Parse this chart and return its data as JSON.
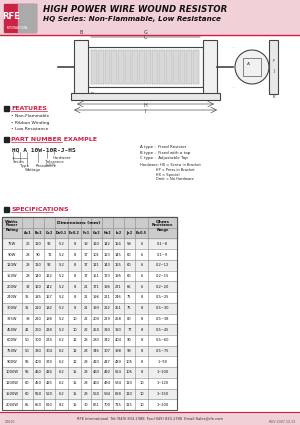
{
  "title1": "HIGH POWER WIRE WOUND RESISTOR",
  "title2": "HQ Series: Non-Flammable, Low Resistance",
  "header_bg": "#f0c0c8",
  "header_text_color": "#1a1a1a",
  "rfe_logo_color": "#cc2244",
  "features_title": "FEATURES",
  "features": [
    "Non-Flammable",
    "Ribbon Winding",
    "Low Resistance"
  ],
  "part_number_title": "PART NUMBER EXAMPLE",
  "part_number": "HQ A 10W-10R-J-HS",
  "type_info": [
    "A type :  Fixed Resistor",
    "B type :  Fixed with a tap",
    "C type :  Adjustable Tap"
  ],
  "hardware_info": [
    "Hardware: HS = Screw in Bracket",
    "              HP = Press in Bracket",
    "              HX = Special",
    "              Omit = No Hardware"
  ],
  "specs_title": "SPECIFICATIONS",
  "table_headers2": [
    "Power Rating",
    "A±1",
    "B±2",
    "C±2",
    "D±0.1",
    "E±0.2",
    "F±1",
    "G±2",
    "H±2",
    "I±2",
    "J±2",
    "K±0.5",
    "Resistance Range"
  ],
  "table_data": [
    [
      "75W",
      "26",
      "110",
      "92",
      "5.2",
      "8",
      "19",
      "120",
      "142",
      "164",
      "58",
      "6",
      "0.1~8"
    ],
    [
      "90W",
      "28",
      "90",
      "72",
      "5.2",
      "8",
      "17",
      "101",
      "123",
      "145",
      "60",
      "6",
      "0.1~9"
    ],
    [
      "120W",
      "28",
      "110",
      "92",
      "5.2",
      "8",
      "17",
      "121",
      "143",
      "165",
      "60",
      "6",
      "0.2~12"
    ],
    [
      "150W",
      "28",
      "140",
      "122",
      "5.2",
      "8",
      "17",
      "151",
      "173",
      "195",
      "60",
      "6",
      "0.2~15"
    ],
    [
      "200W",
      "32",
      "160",
      "142",
      "5.2",
      "8",
      "21",
      "171",
      "196",
      "221",
      "65",
      "6",
      "0.2~20"
    ],
    [
      "240W",
      "35",
      "185",
      "167",
      "5.2",
      "8",
      "21",
      "196",
      "221",
      "246",
      "75",
      "8",
      "0.5~25"
    ],
    [
      "300W",
      "35",
      "210",
      "182",
      "5.2",
      "8",
      "21",
      "193",
      "222",
      "251",
      "75",
      "8",
      "0.5~30"
    ],
    [
      "375W",
      "38",
      "210",
      "188",
      "5.2",
      "10",
      "22",
      "200",
      "229",
      "258",
      "80",
      "8",
      "0.5~38"
    ],
    [
      "450W",
      "41",
      "260",
      "238",
      "5.2",
      "10",
      "22",
      "250",
      "320",
      "320",
      "77",
      "8",
      "0.5~45"
    ],
    [
      "600W",
      "50",
      "300",
      "274",
      "6.2",
      "12",
      "28",
      "280",
      "342",
      "404",
      "90",
      "8",
      "0.5~60"
    ],
    [
      "750W",
      "50",
      "330",
      "304",
      "6.2",
      "12",
      "28",
      "346",
      "307",
      "398",
      "99",
      "8",
      "0.5~75"
    ],
    [
      "900W",
      "55",
      "400",
      "374",
      "6.2",
      "12",
      "28",
      "410",
      "437",
      "489",
      "105",
      "8",
      "1~90"
    ],
    [
      "1000W",
      "55",
      "460",
      "434",
      "6.2",
      "15",
      "28",
      "460",
      "492",
      "524",
      "105",
      "8",
      "1~100"
    ],
    [
      "1200W",
      "60",
      "450",
      "425",
      "6.2",
      "15",
      "28",
      "460",
      "494",
      "534",
      "110",
      "10",
      "1~120"
    ],
    [
      "1500W",
      "60",
      "550",
      "520",
      "6.2",
      "15",
      "28",
      "560",
      "594",
      "628",
      "110",
      "10",
      "1~150"
    ],
    [
      "2000W",
      "65",
      "650",
      "620",
      "8.2",
      "15",
      "30",
      "661",
      "700",
      "715",
      "115",
      "10",
      "1~200"
    ]
  ],
  "footer_text": "RFE International  Tel:(949) 833-1988  Fax:(949) 833-1788  Email:Sales@rfe.com",
  "footer_code": "C3610",
  "footer_date": "REV 2007.12.13",
  "bg_color": "#ffffff",
  "table_header_bg": "#cccccc",
  "table_alt_bg": "#eeeeee",
  "pink_bg": "#f2d0d8",
  "border_color": "#888888"
}
